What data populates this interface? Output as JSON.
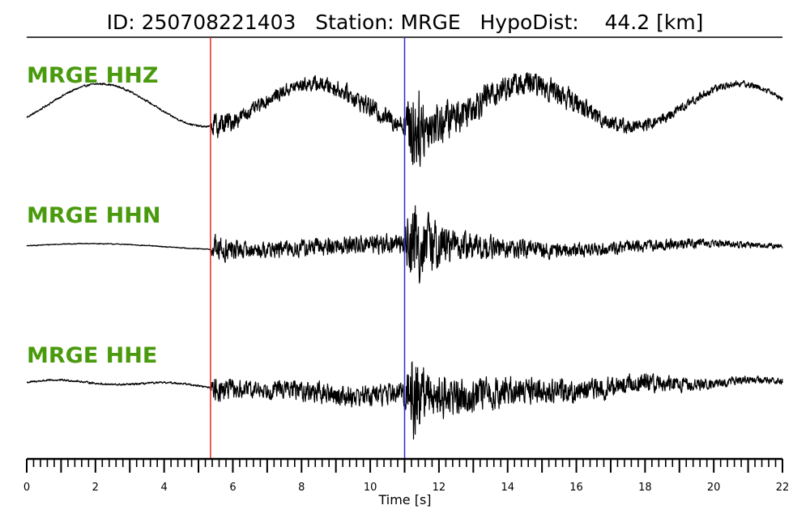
{
  "chart_data": {
    "type": "line",
    "title": "ID: 250708221403   Station: MRGE   HypoDist:    44.2 [km]",
    "xlabel": "Time [s]",
    "xlim": [
      0,
      22
    ],
    "xticks": [
      "0",
      "2",
      "4",
      "6",
      "8",
      "10",
      "12",
      "14",
      "16",
      "18",
      "20",
      "22"
    ],
    "minor_tick_step": 0.2,
    "grid": false,
    "label_color": "#4a9a0e",
    "trace_color": "#000000",
    "picks": [
      {
        "phase": "P",
        "time": 5.35,
        "color": "#e8261f"
      },
      {
        "phase": "S",
        "time": 11.0,
        "color": "#2b2bd6"
      }
    ],
    "traces": [
      {
        "label": "MRGE HHZ",
        "envelope": {
          "t": [
            0,
            5.35,
            5.45,
            6.5,
            8,
            10,
            10.95,
            11.25,
            11.6,
            12.5,
            14,
            16,
            18,
            20,
            22
          ],
          "amp": [
            0.02,
            0.02,
            0.28,
            0.13,
            0.14,
            0.2,
            0.2,
            1.0,
            0.55,
            0.36,
            0.27,
            0.22,
            0.12,
            0.08,
            0.05
          ]
        },
        "drift": [
          {
            "period": 6.2,
            "amp": 0.33,
            "phase": -0.6
          }
        ]
      },
      {
        "label": "MRGE HHN",
        "envelope": {
          "t": [
            0,
            5.35,
            5.45,
            6.5,
            8,
            10,
            10.95,
            11.25,
            11.6,
            12.5,
            14,
            16,
            18,
            20,
            22
          ],
          "amp": [
            0.01,
            0.01,
            0.3,
            0.15,
            0.18,
            0.2,
            0.2,
            1.0,
            0.6,
            0.33,
            0.2,
            0.14,
            0.12,
            0.08,
            0.05
          ]
        },
        "drift": [
          {
            "period": 9.0,
            "amp": 0.05,
            "phase": 0.3
          }
        ]
      },
      {
        "label": "MRGE HHE",
        "envelope": {
          "t": [
            0,
            5.35,
            5.45,
            6.5,
            8,
            10,
            10.95,
            11.25,
            11.6,
            12.5,
            14,
            16,
            18,
            20,
            22
          ],
          "amp": [
            0.02,
            0.02,
            0.26,
            0.17,
            0.2,
            0.22,
            0.2,
            1.0,
            0.56,
            0.38,
            0.3,
            0.24,
            0.18,
            0.1,
            0.06
          ]
        },
        "drift": [
          {
            "period": 20.0,
            "amp": 0.1,
            "phase": 1.2
          },
          {
            "period": 3.4,
            "amp": 0.03,
            "phase": 0.0
          }
        ]
      }
    ]
  }
}
